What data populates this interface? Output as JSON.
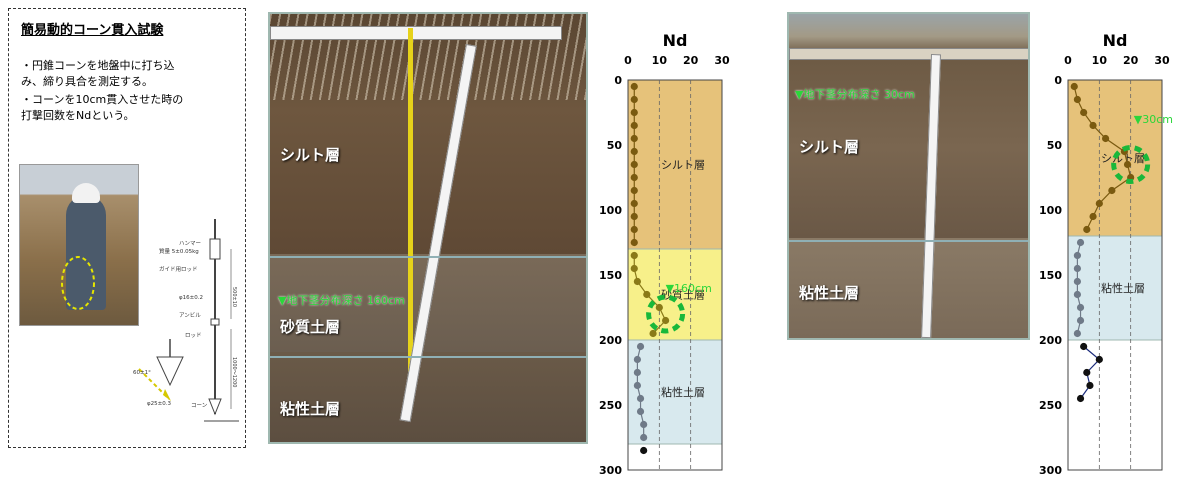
{
  "info": {
    "title": "簡易動的コーン貫入試験",
    "desc_line1": "・円錐コーンを地盤中に打ち込",
    "desc_line2": "み、締り具合を測定する。",
    "desc_line3": "・コーンを10cm貫入させた時の",
    "desc_line4": "打撃回数をNdという。",
    "cone_labels": {
      "hammer": "ハンマー",
      "hammer_mass": "質量 5±0.05kg",
      "guide_rod": "ガイド用ロッド",
      "phi16": "φ16±0.2",
      "anvil": "アンビル",
      "rod": "ロッド",
      "angle": "60±1°",
      "phi25": "φ25±0.3",
      "cone": "コーン",
      "dim_500": "500±10",
      "dim_1000": "1000～1200"
    }
  },
  "photo1": {
    "label_silt": "シルト層",
    "label_sand": "砂質土層",
    "label_clay": "粘性土層",
    "note": "▼地下茎分布深さ 160cm"
  },
  "photo2": {
    "label_silt": "シルト層",
    "label_clay": "粘性土層",
    "note": "▼地下茎分布深さ 30cm"
  },
  "chart_data": [
    {
      "type": "line",
      "title": "Nd",
      "xlim": [
        0,
        30
      ],
      "ylim": [
        0,
        300
      ],
      "x_ticks": [
        "0",
        "10",
        "20",
        "30"
      ],
      "y_ticks": [
        "0",
        "50",
        "100",
        "150",
        "200",
        "250",
        "300"
      ],
      "layers": [
        {
          "name": "シルト層",
          "from": 0,
          "to": 130,
          "color": "#e6c27a"
        },
        {
          "name": "砂質土層",
          "from": 130,
          "to": 200,
          "color": "#f7f08a"
        },
        {
          "name": "粘性土層",
          "from": 200,
          "to": 280,
          "color": "#d8e9ee"
        }
      ],
      "annotation": "▼160cm",
      "annotation_depth": 160,
      "series": [
        {
          "color": "#7a5a10",
          "depth": [
            5,
            15,
            25,
            35,
            45,
            55,
            65,
            75,
            85,
            95,
            105,
            115,
            125
          ],
          "nd": [
            2,
            2,
            2,
            2,
            2,
            2,
            2,
            2,
            2,
            2,
            2,
            2,
            2
          ]
        },
        {
          "color": "#8a7a18",
          "depth": [
            135,
            145,
            155,
            165,
            175,
            185,
            195
          ],
          "nd": [
            2,
            2,
            3,
            6,
            10,
            12,
            8
          ]
        },
        {
          "color": "#6f7a88",
          "depth": [
            205,
            215,
            225,
            235,
            245,
            255,
            265,
            275
          ],
          "nd": [
            4,
            3,
            3,
            3,
            4,
            4,
            5,
            5
          ]
        },
        {
          "color": "#111111",
          "depth": [
            285
          ],
          "nd": [
            5
          ]
        }
      ]
    },
    {
      "type": "line",
      "title": "Nd",
      "xlim": [
        0,
        30
      ],
      "ylim": [
        0,
        300
      ],
      "x_ticks": [
        "0",
        "10",
        "20",
        "30"
      ],
      "y_ticks": [
        "0",
        "50",
        "100",
        "150",
        "200",
        "250",
        "300"
      ],
      "layers": [
        {
          "name": "シルト層",
          "from": 0,
          "to": 120,
          "color": "#e6c27a"
        },
        {
          "name": "粘性土層",
          "from": 120,
          "to": 200,
          "color": "#d8e9ee"
        }
      ],
      "annotation": "▼30cm",
      "annotation_depth": 30,
      "series": [
        {
          "color": "#7a5a10",
          "depth": [
            5,
            15,
            25,
            35,
            45,
            55,
            65,
            75,
            85,
            95,
            105,
            115
          ],
          "nd": [
            2,
            3,
            5,
            8,
            12,
            18,
            19,
            20,
            14,
            10,
            8,
            6
          ]
        },
        {
          "color": "#6f7a88",
          "depth": [
            125,
            135,
            145,
            155,
            165,
            175,
            185,
            195
          ],
          "nd": [
            4,
            3,
            3,
            3,
            3,
            4,
            4,
            3
          ]
        },
        {
          "color": "#111111",
          "depth": [
            205,
            215,
            225,
            235,
            245
          ],
          "nd": [
            5,
            10,
            6,
            7,
            4
          ]
        }
      ]
    }
  ]
}
